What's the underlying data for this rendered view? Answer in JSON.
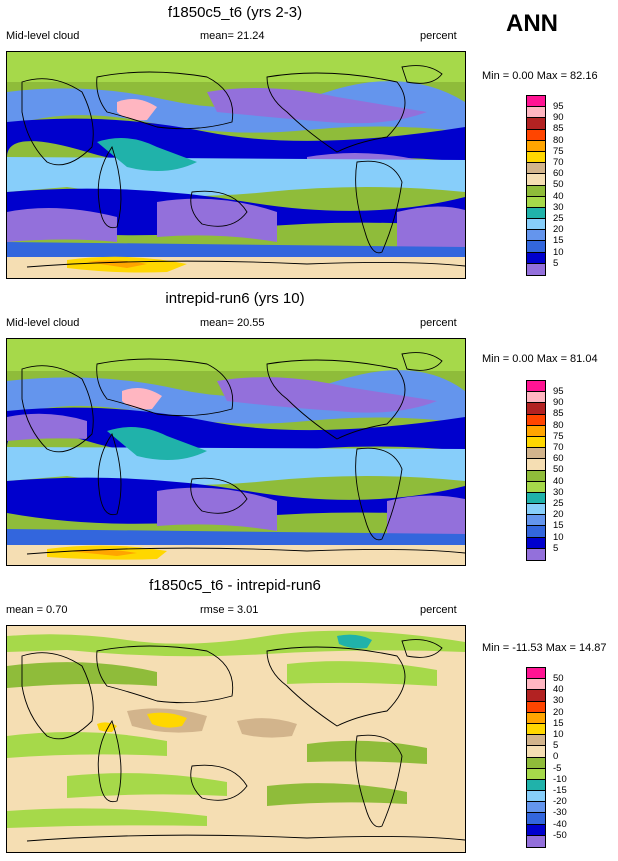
{
  "season": "ANN",
  "panels": [
    {
      "title": "f1850c5_t6 (yrs 2-3)",
      "left_label": "Mid-level cloud",
      "center_label": "mean=  21.24",
      "right_label": "percent",
      "minmax": "Min =   0.00 Max =  82.16",
      "levels": [
        "95",
        "90",
        "85",
        "80",
        "75",
        "70",
        "60",
        "50",
        "40",
        "30",
        "25",
        "20",
        "15",
        "10",
        "5"
      ],
      "colors": [
        "#ff1493",
        "#ffb6c1",
        "#b22222",
        "#ff4500",
        "#ffa500",
        "#ffd700",
        "#d2b48c",
        "#f5deb3",
        "#8fbc3a",
        "#a6d94a",
        "#20b2aa",
        "#87cefa",
        "#6495ed",
        "#3366dd",
        "#0000cd",
        "#9370db"
      ]
    },
    {
      "title": "intrepid-run6 (yrs 10)",
      "left_label": "Mid-level cloud",
      "center_label": "mean=  20.55",
      "right_label": "percent",
      "minmax": "Min =   0.00 Max =  81.04",
      "levels": [
        "95",
        "90",
        "85",
        "80",
        "75",
        "70",
        "60",
        "50",
        "40",
        "30",
        "25",
        "20",
        "15",
        "10",
        "5"
      ],
      "colors": [
        "#ff1493",
        "#ffb6c1",
        "#b22222",
        "#ff4500",
        "#ffa500",
        "#ffd700",
        "#d2b48c",
        "#f5deb3",
        "#8fbc3a",
        "#a6d94a",
        "#20b2aa",
        "#87cefa",
        "#6495ed",
        "#3366dd",
        "#0000cd",
        "#9370db"
      ]
    },
    {
      "title": "f1850c5_t6 - intrepid-run6",
      "left_label": "mean =   0.70",
      "center_label": "rmse =   3.01",
      "right_label": "percent",
      "minmax": "Min = -11.53 Max =  14.87",
      "levels": [
        "50",
        "40",
        "30",
        "20",
        "15",
        "10",
        "5",
        "0",
        "-5",
        "-10",
        "-15",
        "-20",
        "-30",
        "-40",
        "-50"
      ],
      "colors": [
        "#ff1493",
        "#ffb6c1",
        "#b22222",
        "#ff4500",
        "#ffa500",
        "#ffd700",
        "#d2b48c",
        "#f5deb3",
        "#8fbc3a",
        "#a6d94a",
        "#20b2aa",
        "#87cefa",
        "#6495ed",
        "#3366dd",
        "#0000cd",
        "#9370db"
      ]
    }
  ]
}
